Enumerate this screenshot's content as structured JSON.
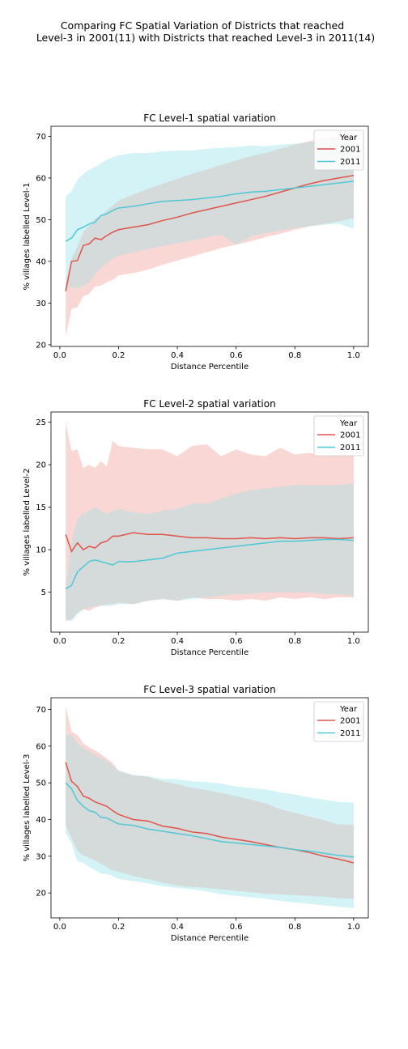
{
  "figure": {
    "suptitle_line1": "Comparing FC Spatial Variation of Districts that reached",
    "suptitle_line2": "Level-3 in 2001(11) with Districts that reached Level-3 in 2011(14)"
  },
  "colors": {
    "2001": "#e0544a",
    "2011": "#4ec8d6",
    "band_2001": "#f4b6b0",
    "band_2011": "#aee9ef",
    "overlap": "#d5dad8"
  },
  "chart_data": [
    {
      "type": "line",
      "title": "FC Level-1 spatial variation",
      "xlabel": "Distance Percentile",
      "ylabel": "% villages labelled Level-1",
      "xlim": [
        -0.03,
        1.05
      ],
      "ylim": [
        19.6,
        72.4
      ],
      "xticks": [
        "0.0",
        "0.2",
        "0.4",
        "0.6",
        "0.8",
        "1.0"
      ],
      "yticks": [
        "20",
        "30",
        "40",
        "50",
        "60",
        "70"
      ],
      "grid": false,
      "legend_title": "Year",
      "legend_position": "upper right",
      "x": [
        0.02,
        0.04,
        0.06,
        0.08,
        0.1,
        0.12,
        0.14,
        0.16,
        0.18,
        0.2,
        0.25,
        0.3,
        0.35,
        0.4,
        0.45,
        0.5,
        0.55,
        0.6,
        0.65,
        0.7,
        0.75,
        0.8,
        0.85,
        0.9,
        0.95,
        1.0
      ],
      "series": [
        {
          "name": "2001",
          "values": [
            32.8,
            40.0,
            40.2,
            43.8,
            44.2,
            45.6,
            45.2,
            46.2,
            47.0,
            47.6,
            48.2,
            48.8,
            49.8,
            50.6,
            51.6,
            52.4,
            53.2,
            54.0,
            54.8,
            55.6,
            56.6,
            57.6,
            58.6,
            59.4,
            60.0,
            60.6
          ],
          "lower": [
            22.0,
            28.6,
            29.0,
            31.6,
            32.2,
            34.0,
            34.2,
            35.0,
            35.6,
            36.6,
            37.2,
            38.0,
            39.2,
            40.2,
            41.2,
            42.2,
            43.2,
            44.0,
            44.8,
            45.8,
            46.6,
            47.6,
            48.4,
            49.0,
            49.6,
            50.4
          ],
          "upper": [
            35.0,
            40.6,
            43.6,
            47.0,
            48.6,
            50.2,
            51.0,
            52.2,
            53.4,
            54.6,
            56.0,
            57.4,
            58.6,
            59.8,
            61.0,
            62.0,
            63.2,
            64.2,
            65.2,
            66.0,
            67.0,
            68.0,
            68.8,
            69.6,
            70.2,
            70.8
          ]
        },
        {
          "name": "2011",
          "values": [
            44.8,
            45.6,
            47.6,
            48.2,
            49.0,
            49.4,
            51.0,
            51.4,
            52.2,
            52.8,
            53.2,
            53.8,
            54.4,
            54.6,
            54.8,
            55.2,
            55.6,
            56.2,
            56.6,
            56.8,
            57.2,
            57.6,
            58.0,
            58.4,
            58.8,
            59.2
          ],
          "lower": [
            33.0,
            34.0,
            33.4,
            34.2,
            35.0,
            37.0,
            38.4,
            39.6,
            40.6,
            41.4,
            42.2,
            43.0,
            43.6,
            44.4,
            45.0,
            45.8,
            46.4,
            44.0,
            46.0,
            46.8,
            47.4,
            48.0,
            48.4,
            48.8,
            49.0,
            47.8
          ],
          "upper": [
            55.6,
            56.8,
            59.6,
            61.0,
            62.0,
            62.6,
            63.6,
            64.4,
            65.0,
            65.4,
            66.0,
            66.0,
            66.4,
            66.6,
            66.6,
            67.0,
            67.2,
            67.4,
            67.8,
            67.6,
            68.0,
            68.2,
            68.6,
            68.8,
            69.0,
            69.2
          ]
        }
      ]
    },
    {
      "type": "line",
      "title": "FC Level-2 spatial variation",
      "xlabel": "Distance Percentile",
      "ylabel": "% villages labelled Level-2",
      "xlim": [
        -0.03,
        1.05
      ],
      "ylim": [
        0.3,
        26.2
      ],
      "xticks": [
        "0.0",
        "0.2",
        "0.4",
        "0.6",
        "0.8",
        "1.0"
      ],
      "yticks": [
        "5",
        "10",
        "15",
        "20",
        "25"
      ],
      "grid": false,
      "legend_title": "Year",
      "legend_position": "upper right",
      "x": [
        0.02,
        0.04,
        0.06,
        0.08,
        0.1,
        0.12,
        0.14,
        0.16,
        0.18,
        0.2,
        0.25,
        0.3,
        0.35,
        0.4,
        0.45,
        0.5,
        0.55,
        0.6,
        0.65,
        0.7,
        0.75,
        0.8,
        0.85,
        0.9,
        0.95,
        1.0
      ],
      "series": [
        {
          "name": "2001",
          "values": [
            11.8,
            9.8,
            10.8,
            10.0,
            10.4,
            10.2,
            10.8,
            11.0,
            11.6,
            11.6,
            12.0,
            11.8,
            11.8,
            11.6,
            11.4,
            11.4,
            11.3,
            11.3,
            11.4,
            11.3,
            11.4,
            11.3,
            11.4,
            11.4,
            11.3,
            11.4
          ],
          "lower": [
            1.6,
            1.8,
            2.6,
            3.0,
            2.8,
            3.2,
            3.4,
            3.6,
            3.6,
            3.8,
            3.6,
            4.0,
            4.2,
            4.0,
            4.4,
            4.2,
            4.2,
            4.0,
            4.2,
            4.0,
            4.4,
            4.2,
            4.4,
            4.2,
            4.4,
            4.4
          ],
          "upper": [
            25.0,
            21.6,
            21.8,
            19.6,
            20.0,
            19.6,
            20.4,
            19.8,
            22.8,
            22.2,
            22.0,
            21.8,
            21.8,
            21.0,
            22.2,
            22.4,
            21.0,
            21.8,
            21.2,
            21.0,
            22.0,
            21.2,
            21.4,
            21.0,
            21.2,
            21.2
          ]
        },
        {
          "name": "2011",
          "values": [
            5.4,
            5.8,
            7.4,
            8.0,
            8.6,
            8.8,
            8.6,
            8.4,
            8.2,
            8.6,
            8.6,
            8.8,
            9.0,
            9.6,
            9.8,
            10.0,
            10.2,
            10.4,
            10.6,
            10.8,
            11.0,
            11.0,
            11.1,
            11.2,
            11.2,
            11.1
          ],
          "lower": [
            1.8,
            1.6,
            2.4,
            3.0,
            3.2,
            3.4,
            3.4,
            3.4,
            3.4,
            3.6,
            3.6,
            4.0,
            4.2,
            4.0,
            4.2,
            4.4,
            4.6,
            4.8,
            4.8,
            5.0,
            5.0,
            5.0,
            5.0,
            4.8,
            4.8,
            4.6
          ],
          "upper": [
            5.4,
            11.0,
            13.6,
            14.2,
            14.6,
            15.0,
            14.6,
            14.2,
            14.6,
            14.8,
            14.4,
            14.2,
            14.6,
            14.8,
            15.4,
            15.4,
            16.0,
            16.6,
            17.0,
            17.2,
            17.4,
            17.6,
            17.6,
            17.6,
            17.6,
            17.8
          ]
        }
      ]
    },
    {
      "type": "line",
      "title": "FC Level-3 spatial variation",
      "xlabel": "Distance Percentile",
      "ylabel": "% villages labelled Level-3",
      "xlim": [
        -0.03,
        1.05
      ],
      "ylim": [
        13.2,
        73.2
      ],
      "xticks": [
        "0.0",
        "0.2",
        "0.4",
        "0.6",
        "0.8",
        "1.0"
      ],
      "yticks": [
        "20",
        "30",
        "40",
        "50",
        "60",
        "70"
      ],
      "grid": false,
      "legend_title": "Year",
      "legend_position": "upper right",
      "x": [
        0.02,
        0.04,
        0.06,
        0.08,
        0.1,
        0.12,
        0.14,
        0.16,
        0.18,
        0.2,
        0.25,
        0.3,
        0.35,
        0.4,
        0.45,
        0.5,
        0.55,
        0.6,
        0.65,
        0.7,
        0.75,
        0.8,
        0.85,
        0.9,
        0.95,
        1.0
      ],
      "series": [
        {
          "name": "2001",
          "values": [
            55.6,
            50.4,
            49.0,
            46.4,
            45.8,
            44.8,
            44.2,
            43.6,
            42.4,
            41.4,
            40.0,
            39.6,
            38.2,
            37.6,
            36.6,
            36.2,
            35.2,
            34.6,
            34.0,
            33.2,
            32.4,
            31.8,
            31.0,
            30.0,
            29.2,
            28.2
          ],
          "lower": [
            38.4,
            35.0,
            31.4,
            30.2,
            29.6,
            28.8,
            28.0,
            27.0,
            26.2,
            25.8,
            24.6,
            23.8,
            22.8,
            22.0,
            21.6,
            21.4,
            21.0,
            20.6,
            20.2,
            19.8,
            19.6,
            19.4,
            19.2,
            19.0,
            18.6,
            18.4
          ],
          "upper": [
            70.8,
            64.0,
            63.0,
            60.8,
            59.6,
            58.8,
            57.8,
            56.6,
            55.4,
            53.2,
            52.0,
            51.6,
            50.4,
            49.6,
            48.6,
            48.0,
            47.2,
            46.4,
            45.4,
            44.4,
            42.8,
            41.8,
            40.8,
            39.8,
            38.6,
            38.6
          ]
        },
        {
          "name": "2011",
          "values": [
            50.0,
            48.4,
            45.2,
            43.6,
            42.4,
            42.0,
            40.6,
            40.4,
            39.6,
            38.8,
            38.4,
            37.4,
            36.8,
            36.2,
            35.6,
            34.8,
            34.0,
            33.6,
            33.2,
            32.8,
            32.4,
            31.8,
            31.4,
            30.8,
            30.2,
            29.8
          ],
          "lower": [
            36.4,
            33.4,
            28.6,
            28.2,
            27.0,
            26.2,
            25.2,
            25.2,
            24.6,
            23.8,
            23.2,
            22.6,
            21.8,
            21.4,
            21.0,
            20.4,
            19.6,
            19.2,
            18.8,
            18.4,
            17.8,
            17.4,
            17.0,
            16.6,
            16.2,
            15.8
          ],
          "upper": [
            63.0,
            63.0,
            60.8,
            59.4,
            58.6,
            57.6,
            56.8,
            56.0,
            54.6,
            53.4,
            52.2,
            51.8,
            51.0,
            51.0,
            50.4,
            50.2,
            49.8,
            49.0,
            48.6,
            48.2,
            47.4,
            46.8,
            46.0,
            45.4,
            44.8,
            44.6
          ]
        }
      ]
    }
  ]
}
